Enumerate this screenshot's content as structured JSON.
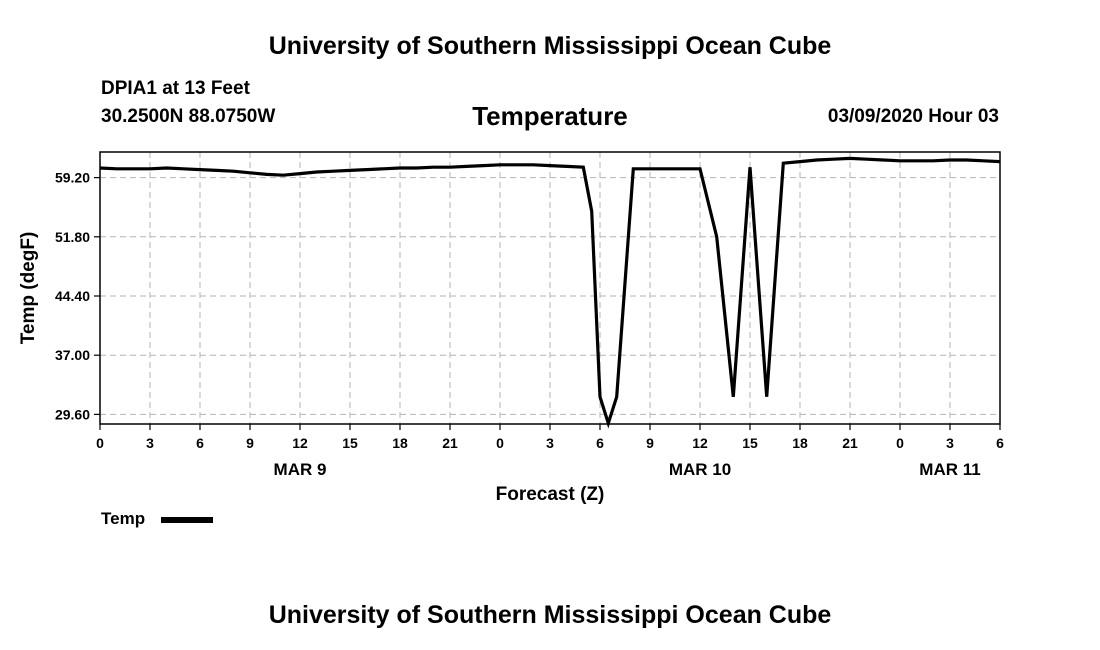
{
  "header": {
    "title_top": "University of Southern Mississippi Ocean Cube",
    "title_bottom": "University of Southern Mississippi Ocean Cube"
  },
  "station": {
    "name": "DPIA1 at 13 Feet",
    "coords": "30.2500N 88.0750W"
  },
  "forecast_label": "03/09/2020 Hour 03",
  "legend": {
    "label": "Temp",
    "placement": "bottom-left"
  },
  "chart_data": {
    "type": "line",
    "title": "Temperature",
    "xlabel": "Forecast (Z)",
    "ylabel": "Temp (degF)",
    "x_unit": "hours",
    "xlim": [
      0,
      54
    ],
    "ylim": [
      28.4,
      62.4
    ],
    "grid": true,
    "y_ticks": [
      "29.60",
      "37.00",
      "44.40",
      "51.80",
      "59.20"
    ],
    "y_tick_values": [
      29.6,
      37.0,
      44.4,
      51.8,
      59.2
    ],
    "x_ticks": [
      "0",
      "3",
      "6",
      "9",
      "12",
      "15",
      "18",
      "21",
      "0",
      "3",
      "6",
      "9",
      "12",
      "15",
      "18",
      "21",
      "0",
      "3",
      "6"
    ],
    "x_tick_hours": [
      0,
      3,
      6,
      9,
      12,
      15,
      18,
      21,
      24,
      27,
      30,
      33,
      36,
      39,
      42,
      45,
      48,
      51,
      54
    ],
    "date_labels": [
      {
        "label": "MAR 9",
        "hour": 12
      },
      {
        "label": "MAR 10",
        "hour": 36
      },
      {
        "label": "MAR 11",
        "hour": 51
      }
    ],
    "series": [
      {
        "name": "Temp",
        "color": "#000000",
        "x": [
          0,
          1,
          2,
          3,
          4,
          5,
          6,
          7,
          8,
          9,
          10,
          11,
          12,
          13,
          14,
          15,
          16,
          17,
          18,
          19,
          20,
          21,
          22,
          23,
          24,
          25,
          26,
          27,
          28,
          29,
          29.5,
          30,
          30.5,
          31,
          32,
          33,
          34,
          35,
          36,
          37,
          38,
          39,
          40,
          41,
          42,
          43,
          44,
          45,
          46,
          47,
          48,
          49,
          50,
          51,
          52,
          53,
          54
        ],
        "values": [
          60.4,
          60.3,
          60.3,
          60.3,
          60.4,
          60.3,
          60.2,
          60.1,
          60.0,
          59.8,
          59.6,
          59.5,
          59.7,
          59.9,
          60.0,
          60.1,
          60.2,
          60.3,
          60.4,
          60.4,
          60.5,
          60.5,
          60.6,
          60.7,
          60.8,
          60.8,
          60.8,
          60.7,
          60.6,
          60.5,
          55.0,
          31.8,
          28.5,
          31.8,
          60.3,
          60.3,
          60.3,
          60.3,
          60.3,
          51.8,
          31.8,
          60.5,
          31.8,
          61.0,
          61.2,
          61.4,
          61.5,
          61.6,
          61.5,
          61.4,
          61.3,
          61.3,
          61.3,
          61.4,
          61.4,
          61.3,
          61.2
        ]
      }
    ]
  }
}
